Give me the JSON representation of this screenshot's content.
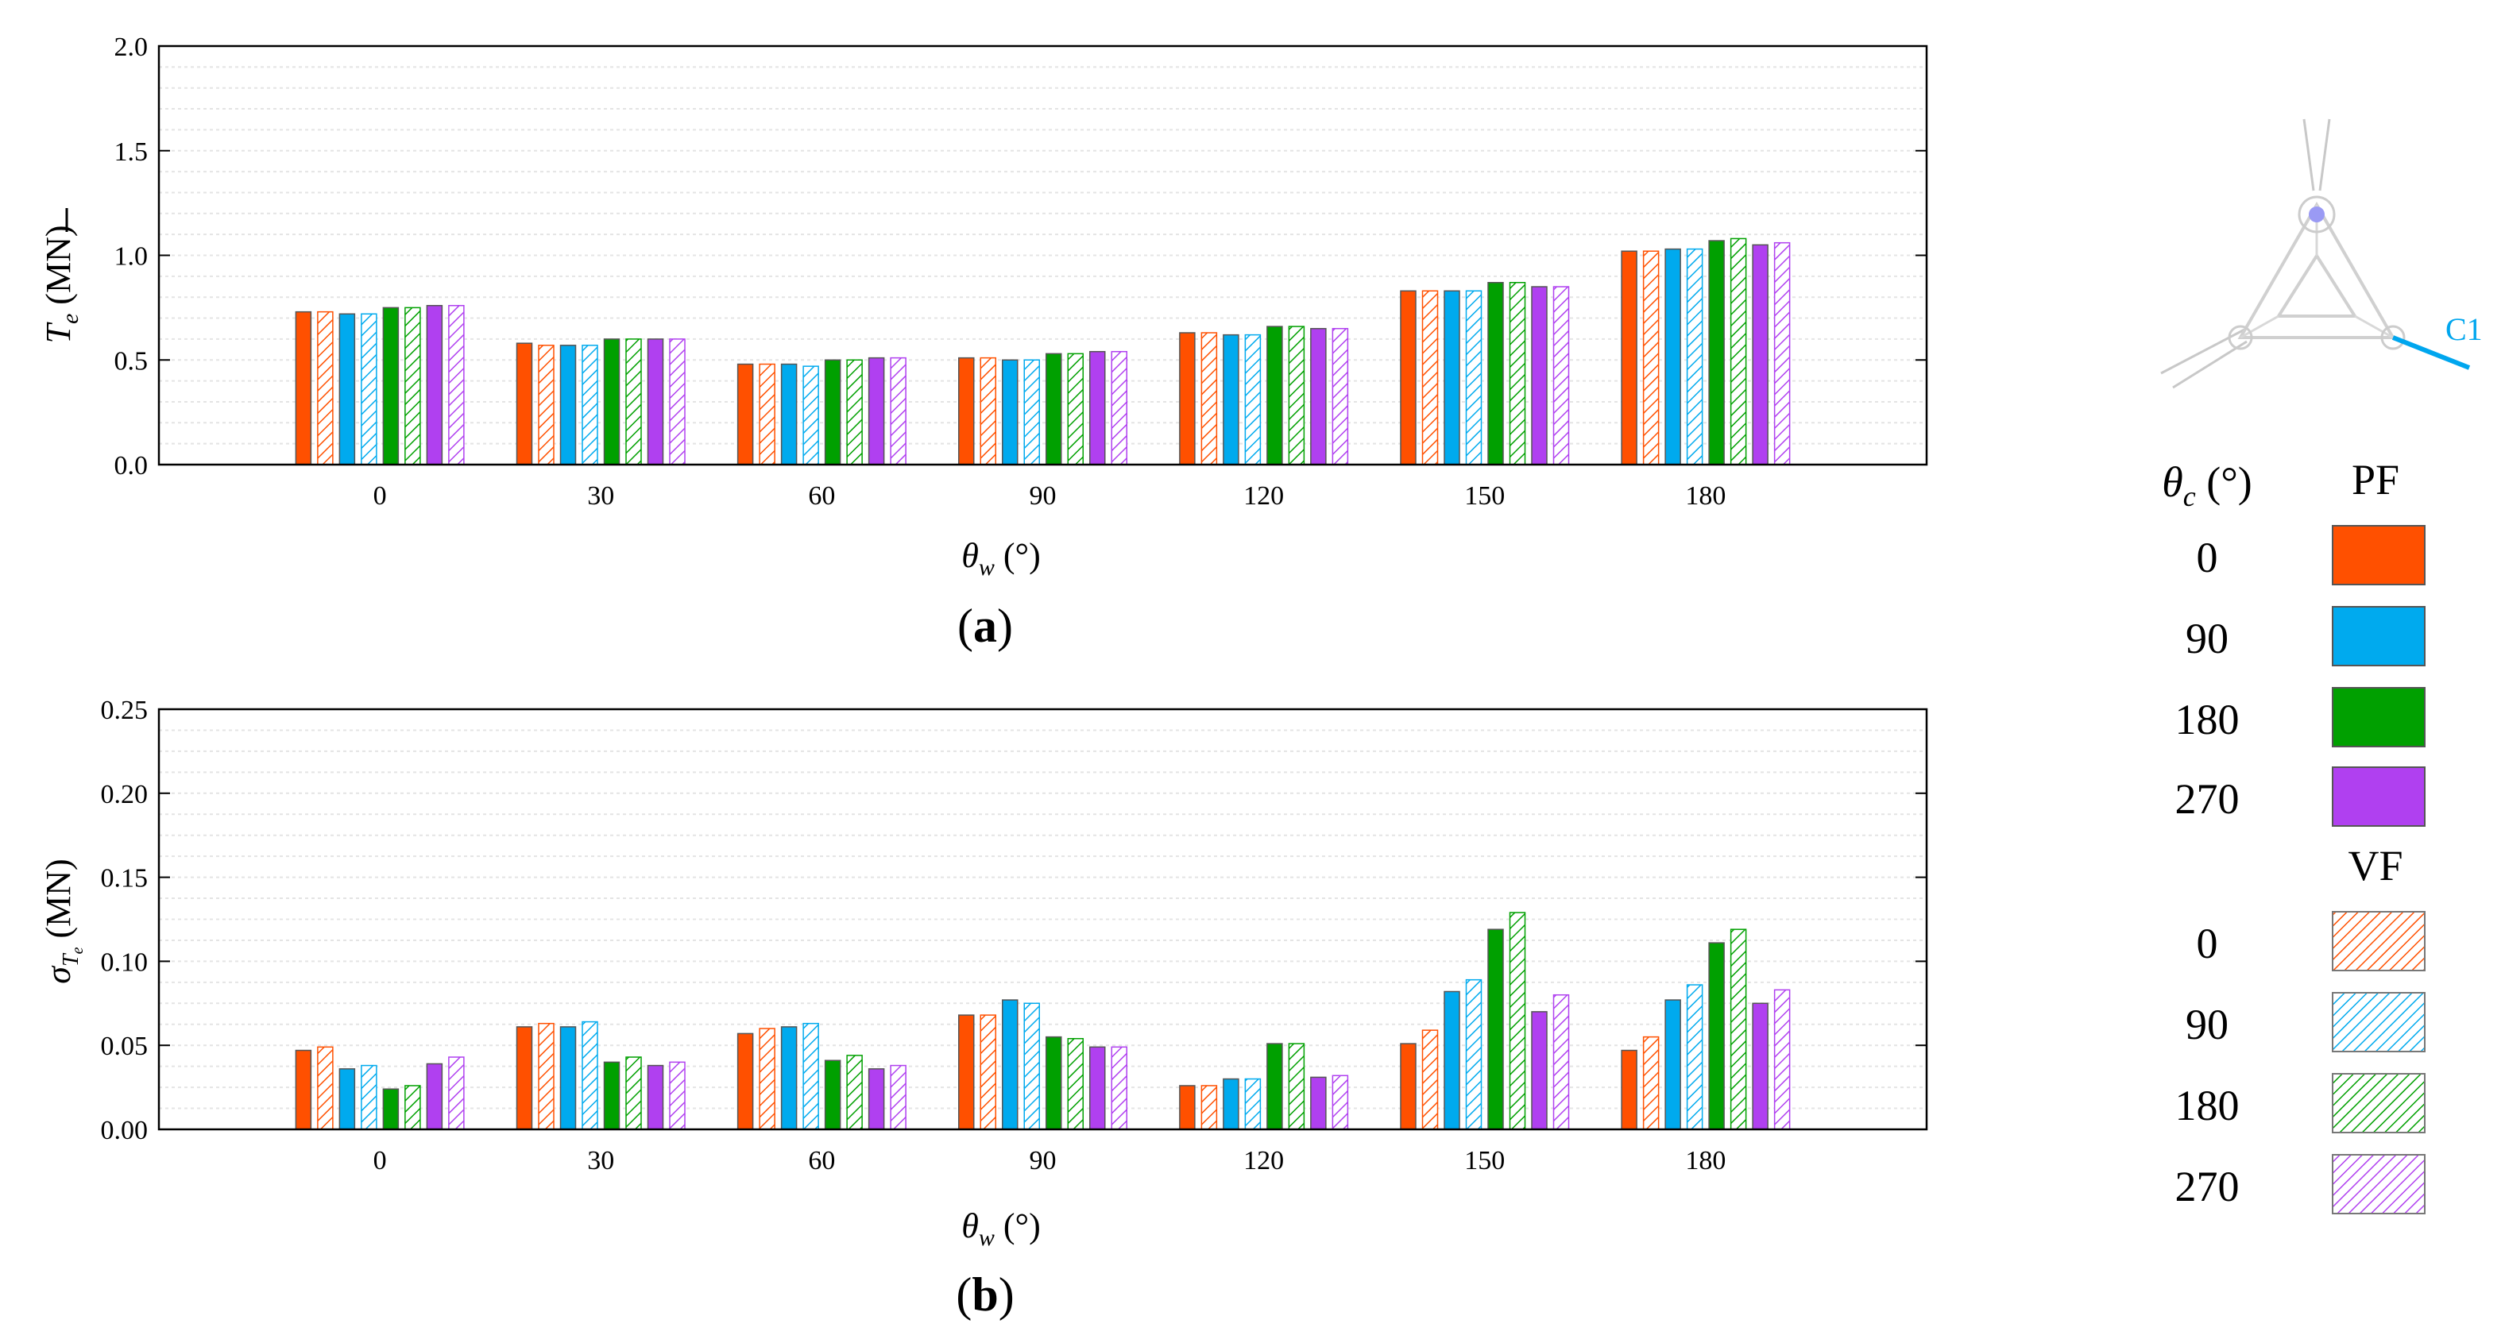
{
  "chart_data": [
    {
      "type": "bar",
      "panel_label": "a",
      "ylabel": "T̄e (MN)",
      "xlabel": "θw (°)",
      "categories": [
        "0",
        "30",
        "60",
        "90",
        "120",
        "150",
        "180"
      ],
      "ylim": [
        0,
        2.0
      ],
      "yticks": [
        "0.0",
        "0.5",
        "1.0",
        "1.5",
        "2.0"
      ],
      "grid": true,
      "series": [
        {
          "name": "PF 0",
          "color": "#ff5000",
          "pattern": "solid",
          "values": [
            0.73,
            0.58,
            0.48,
            0.51,
            0.63,
            0.83,
            1.02
          ]
        },
        {
          "name": "VF 0",
          "color": "#ff5000",
          "pattern": "hatched",
          "values": [
            0.73,
            0.57,
            0.48,
            0.51,
            0.63,
            0.83,
            1.02
          ]
        },
        {
          "name": "PF 90",
          "color": "#00aaee",
          "pattern": "solid",
          "values": [
            0.72,
            0.57,
            0.48,
            0.5,
            0.62,
            0.83,
            1.03
          ]
        },
        {
          "name": "VF 90",
          "color": "#00aaee",
          "pattern": "hatched",
          "values": [
            0.72,
            0.57,
            0.47,
            0.5,
            0.62,
            0.83,
            1.03
          ]
        },
        {
          "name": "PF 180",
          "color": "#00a000",
          "pattern": "solid",
          "values": [
            0.75,
            0.6,
            0.5,
            0.53,
            0.66,
            0.87,
            1.07
          ]
        },
        {
          "name": "VF 180",
          "color": "#00a000",
          "pattern": "hatched",
          "values": [
            0.75,
            0.6,
            0.5,
            0.53,
            0.66,
            0.87,
            1.08
          ]
        },
        {
          "name": "PF 270",
          "color": "#b040f0",
          "pattern": "solid",
          "values": [
            0.76,
            0.6,
            0.51,
            0.54,
            0.65,
            0.85,
            1.05
          ]
        },
        {
          "name": "VF 270",
          "color": "#b040f0",
          "pattern": "hatched",
          "values": [
            0.76,
            0.6,
            0.51,
            0.54,
            0.65,
            0.85,
            1.06
          ]
        }
      ]
    },
    {
      "type": "bar",
      "panel_label": "b",
      "ylabel": "σTe (MN)",
      "xlabel": "θw (°)",
      "categories": [
        "0",
        "30",
        "60",
        "90",
        "120",
        "150",
        "180"
      ],
      "ylim": [
        0,
        0.25
      ],
      "yticks": [
        "0.00",
        "0.05",
        "0.10",
        "0.15",
        "0.20",
        "0.25"
      ],
      "grid": true,
      "series": [
        {
          "name": "PF 0",
          "color": "#ff5000",
          "pattern": "solid",
          "values": [
            0.047,
            0.061,
            0.057,
            0.068,
            0.026,
            0.051,
            0.047
          ]
        },
        {
          "name": "VF 0",
          "color": "#ff5000",
          "pattern": "hatched",
          "values": [
            0.049,
            0.063,
            0.06,
            0.068,
            0.026,
            0.059,
            0.055
          ]
        },
        {
          "name": "PF 90",
          "color": "#00aaee",
          "pattern": "solid",
          "values": [
            0.036,
            0.061,
            0.061,
            0.077,
            0.03,
            0.082,
            0.077
          ]
        },
        {
          "name": "VF 90",
          "color": "#00aaee",
          "pattern": "hatched",
          "values": [
            0.038,
            0.064,
            0.063,
            0.075,
            0.03,
            0.089,
            0.086
          ]
        },
        {
          "name": "PF 180",
          "color": "#00a000",
          "pattern": "solid",
          "values": [
            0.024,
            0.04,
            0.041,
            0.055,
            0.051,
            0.119,
            0.111
          ]
        },
        {
          "name": "VF 180",
          "color": "#00a000",
          "pattern": "hatched",
          "values": [
            0.026,
            0.043,
            0.044,
            0.054,
            0.051,
            0.129,
            0.119
          ]
        },
        {
          "name": "PF 270",
          "color": "#b040f0",
          "pattern": "solid",
          "values": [
            0.039,
            0.038,
            0.036,
            0.049,
            0.031,
            0.07,
            0.075
          ]
        },
        {
          "name": "VF 270",
          "color": "#b040f0",
          "pattern": "hatched",
          "values": [
            0.043,
            0.04,
            0.038,
            0.049,
            0.032,
            0.08,
            0.083
          ]
        }
      ]
    }
  ],
  "legend": {
    "header": "θc (°)",
    "pf_label": "PF",
    "vf_label": "VF",
    "pf_items": [
      {
        "label": "0",
        "color": "#ff5000"
      },
      {
        "label": "90",
        "color": "#00aaee"
      },
      {
        "label": "180",
        "color": "#00a000"
      },
      {
        "label": "270",
        "color": "#b040f0"
      }
    ],
    "vf_items": [
      {
        "label": "0",
        "color": "#ff5000"
      },
      {
        "label": "90",
        "color": "#00aaee"
      },
      {
        "label": "180",
        "color": "#00a000"
      },
      {
        "label": "270",
        "color": "#b040f0"
      }
    ]
  },
  "schematic": {
    "line_label": "C1",
    "line_color": "#00a6ee",
    "icon": "triangular-platform-mooring-schematic-icon"
  }
}
